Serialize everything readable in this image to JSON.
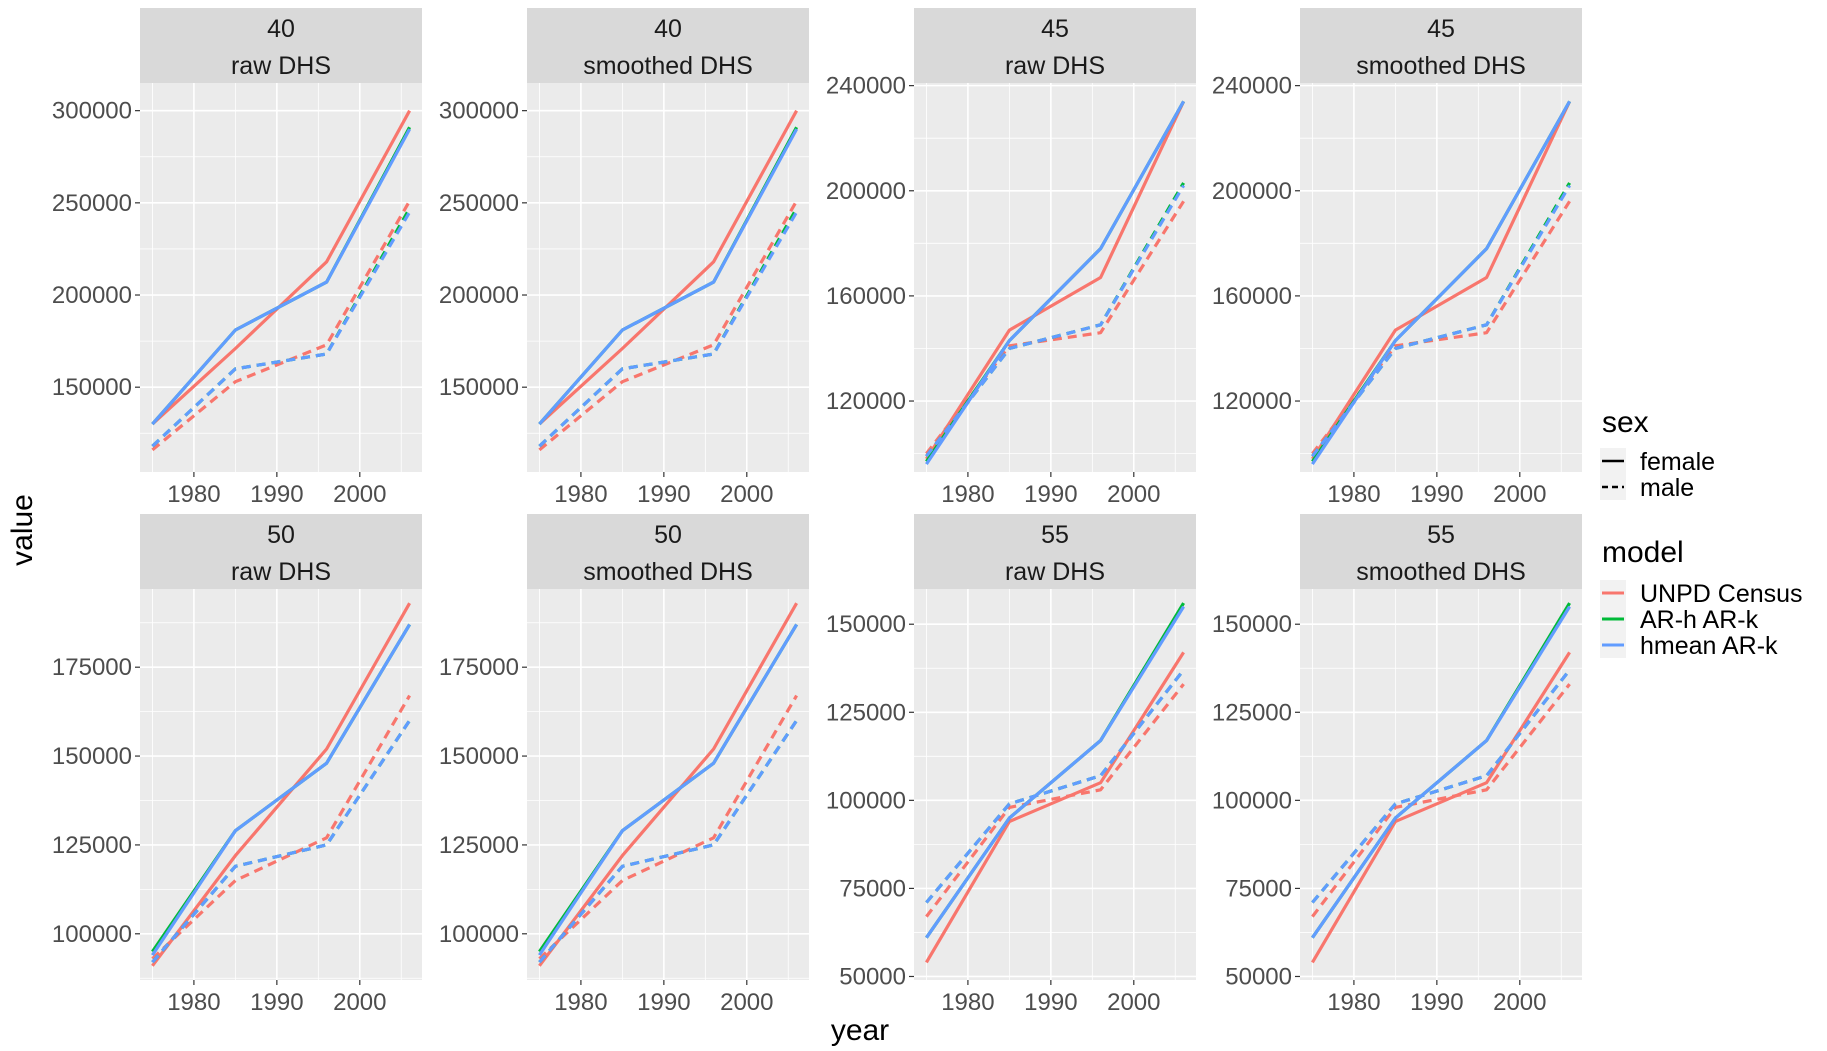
{
  "chart_data": {
    "type": "line",
    "xlabel": "year",
    "ylabel": "value",
    "x": [
      1975,
      1985,
      1996,
      2006
    ],
    "x_ticks": [
      1980,
      1990,
      2000
    ],
    "xlim": [
      1973.5,
      2007.5
    ],
    "grid": true,
    "legend_position": "right",
    "legend": {
      "sex": {
        "title": "sex",
        "items": [
          {
            "label": "female",
            "linetype": "solid"
          },
          {
            "label": "male",
            "linetype": "dashed"
          }
        ]
      },
      "model": {
        "title": "model",
        "items": [
          {
            "label": "UNPD Census",
            "color": "#F8766D"
          },
          {
            "label": "AR-h AR-k",
            "color": "#00BA38"
          },
          {
            "label": "hmean AR-k",
            "color": "#619CFF"
          }
        ]
      }
    },
    "panels": [
      {
        "strip_top": "40",
        "strip_bottom": "raw DHS",
        "ylim": [
          104000,
          315000
        ],
        "y_ticks": [
          150000,
          200000,
          250000,
          300000
        ],
        "y_tick_labels": [
          "150000",
          "200000",
          "250000",
          "300000"
        ],
        "series": [
          {
            "model": "UNPD Census",
            "sex": "female",
            "values": [
              130000,
              171000,
              218000,
              300000
            ]
          },
          {
            "model": "UNPD Census",
            "sex": "male",
            "values": [
              116000,
              153000,
              173000,
              251000
            ]
          },
          {
            "model": "AR-h AR-k",
            "sex": "female",
            "values": [
              130000,
              181000,
              207000,
              291000
            ]
          },
          {
            "model": "AR-h AR-k",
            "sex": "male",
            "values": [
              118000,
              160000,
              168000,
              247000
            ]
          },
          {
            "model": "hmean AR-k",
            "sex": "female",
            "values": [
              130000,
              181000,
              207000,
              290000
            ]
          },
          {
            "model": "hmean AR-k",
            "sex": "male",
            "values": [
              118000,
              160000,
              168000,
              245000
            ]
          }
        ]
      },
      {
        "strip_top": "40",
        "strip_bottom": "smoothed DHS",
        "ylim": [
          104000,
          315000
        ],
        "y_ticks": [
          150000,
          200000,
          250000,
          300000
        ],
        "y_tick_labels": [
          "150000",
          "200000",
          "250000",
          "300000"
        ],
        "series": [
          {
            "model": "UNPD Census",
            "sex": "female",
            "values": [
              130000,
              171000,
              218000,
              300000
            ]
          },
          {
            "model": "UNPD Census",
            "sex": "male",
            "values": [
              116000,
              153000,
              173000,
              251000
            ]
          },
          {
            "model": "AR-h AR-k",
            "sex": "female",
            "values": [
              130000,
              181000,
              207000,
              291000
            ]
          },
          {
            "model": "AR-h AR-k",
            "sex": "male",
            "values": [
              118000,
              160000,
              168000,
              247000
            ]
          },
          {
            "model": "hmean AR-k",
            "sex": "female",
            "values": [
              130000,
              181000,
              207000,
              290000
            ]
          },
          {
            "model": "hmean AR-k",
            "sex": "male",
            "values": [
              118000,
              160000,
              168000,
              245000
            ]
          }
        ]
      },
      {
        "strip_top": "45",
        "strip_bottom": "raw DHS",
        "ylim": [
          93000,
          241000
        ],
        "y_ticks": [
          120000,
          160000,
          200000,
          240000
        ],
        "y_tick_labels": [
          "120000",
          "160000",
          "200000",
          "240000"
        ],
        "series": [
          {
            "model": "UNPD Census",
            "sex": "female",
            "values": [
              98000,
              147000,
              167000,
              234000
            ]
          },
          {
            "model": "UNPD Census",
            "sex": "male",
            "values": [
              100000,
              141000,
              146000,
              196000
            ]
          },
          {
            "model": "AR-h AR-k",
            "sex": "female",
            "values": [
              97000,
              143000,
              178000,
              234000
            ]
          },
          {
            "model": "AR-h AR-k",
            "sex": "male",
            "values": [
              99000,
              140000,
              149000,
              203000
            ]
          },
          {
            "model": "hmean AR-k",
            "sex": "female",
            "values": [
              96000,
              143000,
              178000,
              234000
            ]
          },
          {
            "model": "hmean AR-k",
            "sex": "male",
            "values": [
              99000,
              140000,
              149000,
              202000
            ]
          }
        ]
      },
      {
        "strip_top": "45",
        "strip_bottom": "smoothed DHS",
        "ylim": [
          93000,
          241000
        ],
        "y_ticks": [
          120000,
          160000,
          200000,
          240000
        ],
        "y_tick_labels": [
          "120000",
          "160000",
          "200000",
          "240000"
        ],
        "series": [
          {
            "model": "UNPD Census",
            "sex": "female",
            "values": [
              98000,
              147000,
              167000,
              234000
            ]
          },
          {
            "model": "UNPD Census",
            "sex": "male",
            "values": [
              100000,
              141000,
              146000,
              196000
            ]
          },
          {
            "model": "AR-h AR-k",
            "sex": "female",
            "values": [
              97000,
              143000,
              178000,
              234000
            ]
          },
          {
            "model": "AR-h AR-k",
            "sex": "male",
            "values": [
              99000,
              140000,
              149000,
              203000
            ]
          },
          {
            "model": "hmean AR-k",
            "sex": "female",
            "values": [
              96000,
              143000,
              178000,
              234000
            ]
          },
          {
            "model": "hmean AR-k",
            "sex": "male",
            "values": [
              99000,
              140000,
              149000,
              202000
            ]
          }
        ]
      },
      {
        "strip_top": "50",
        "strip_bottom": "raw DHS",
        "ylim": [
          87000,
          197000
        ],
        "y_ticks": [
          100000,
          125000,
          150000,
          175000
        ],
        "y_tick_labels": [
          "100000",
          "125000",
          "150000",
          "175000"
        ],
        "series": [
          {
            "model": "UNPD Census",
            "sex": "female",
            "values": [
              91000,
              122000,
              152000,
              193000
            ]
          },
          {
            "model": "UNPD Census",
            "sex": "male",
            "values": [
              93000,
              115000,
              127000,
              167000
            ]
          },
          {
            "model": "AR-h AR-k",
            "sex": "female",
            "values": [
              95000,
              129000,
              148000,
              187000
            ]
          },
          {
            "model": "AR-h AR-k",
            "sex": "male",
            "values": [
              92000,
              119000,
              125000,
              160000
            ]
          },
          {
            "model": "hmean AR-k",
            "sex": "female",
            "values": [
              94000,
              129000,
              148000,
              187000
            ]
          },
          {
            "model": "hmean AR-k",
            "sex": "male",
            "values": [
              92000,
              119000,
              125000,
              160000
            ]
          }
        ]
      },
      {
        "strip_top": "50",
        "strip_bottom": "smoothed DHS",
        "ylim": [
          87000,
          197000
        ],
        "y_ticks": [
          100000,
          125000,
          150000,
          175000
        ],
        "y_tick_labels": [
          "100000",
          "125000",
          "150000",
          "175000"
        ],
        "series": [
          {
            "model": "UNPD Census",
            "sex": "female",
            "values": [
              91000,
              122000,
              152000,
              193000
            ]
          },
          {
            "model": "UNPD Census",
            "sex": "male",
            "values": [
              93000,
              115000,
              127000,
              167000
            ]
          },
          {
            "model": "AR-h AR-k",
            "sex": "female",
            "values": [
              95000,
              129000,
              148000,
              187000
            ]
          },
          {
            "model": "AR-h AR-k",
            "sex": "male",
            "values": [
              92000,
              119000,
              125000,
              160000
            ]
          },
          {
            "model": "hmean AR-k",
            "sex": "female",
            "values": [
              94000,
              129000,
              148000,
              187000
            ]
          },
          {
            "model": "hmean AR-k",
            "sex": "male",
            "values": [
              92000,
              119000,
              125000,
              160000
            ]
          }
        ]
      },
      {
        "strip_top": "55",
        "strip_bottom": "raw DHS",
        "ylim": [
          49000,
          160000
        ],
        "y_ticks": [
          50000,
          75000,
          100000,
          125000,
          150000
        ],
        "y_tick_labels": [
          "50000",
          "75000",
          "100000",
          "125000",
          "150000"
        ],
        "series": [
          {
            "model": "UNPD Census",
            "sex": "female",
            "values": [
              54000,
              94000,
              105000,
              142000
            ]
          },
          {
            "model": "UNPD Census",
            "sex": "male",
            "values": [
              67000,
              98000,
              103000,
              133000
            ]
          },
          {
            "model": "AR-h AR-k",
            "sex": "female",
            "values": [
              61000,
              95000,
              117000,
              156000
            ]
          },
          {
            "model": "AR-h AR-k",
            "sex": "male",
            "values": [
              71000,
              99000,
              107000,
              137000
            ]
          },
          {
            "model": "hmean AR-k",
            "sex": "female",
            "values": [
              61000,
              95000,
              117000,
              155000
            ]
          },
          {
            "model": "hmean AR-k",
            "sex": "male",
            "values": [
              71000,
              99000,
              107000,
              137000
            ]
          }
        ]
      },
      {
        "strip_top": "55",
        "strip_bottom": "smoothed DHS",
        "ylim": [
          49000,
          160000
        ],
        "y_ticks": [
          50000,
          75000,
          100000,
          125000,
          150000
        ],
        "y_tick_labels": [
          "50000",
          "75000",
          "100000",
          "125000",
          "150000"
        ],
        "series": [
          {
            "model": "UNPD Census",
            "sex": "female",
            "values": [
              54000,
              94000,
              105000,
              142000
            ]
          },
          {
            "model": "UNPD Census",
            "sex": "male",
            "values": [
              67000,
              98000,
              103000,
              133000
            ]
          },
          {
            "model": "AR-h AR-k",
            "sex": "female",
            "values": [
              61000,
              95000,
              117000,
              156000
            ]
          },
          {
            "model": "AR-h AR-k",
            "sex": "male",
            "values": [
              71000,
              99000,
              107000,
              137000
            ]
          },
          {
            "model": "hmean AR-k",
            "sex": "female",
            "values": [
              61000,
              95000,
              117000,
              155000
            ]
          },
          {
            "model": "hmean AR-k",
            "sex": "male",
            "values": [
              71000,
              99000,
              107000,
              137000
            ]
          }
        ]
      }
    ]
  }
}
